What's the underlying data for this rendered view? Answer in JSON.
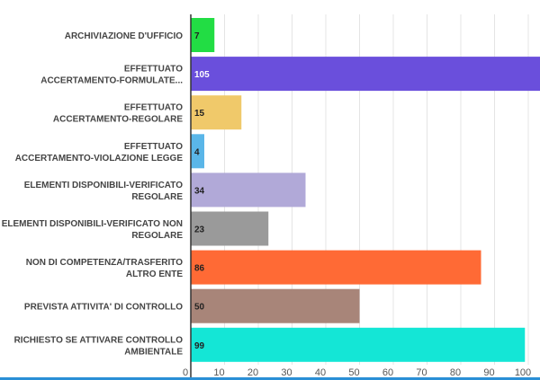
{
  "chart_data": {
    "type": "bar",
    "orientation": "horizontal",
    "categories": [
      [
        "ARCHIVIAZIONE D'UFFICIO"
      ],
      [
        "EFFETTUATO",
        "ACCERTAMENTO-FORMULATE..."
      ],
      [
        "EFFETTUATO",
        "ACCERTAMENTO-REGOLARE"
      ],
      [
        "EFFETTUATO",
        "ACCERTAMENTO-VIOLAZIONE LEGGE"
      ],
      [
        "ELEMENTI DISPONIBILI-VERIFICATO",
        "REGOLARE"
      ],
      [
        "ELEMENTI DISPONIBILI-VERIFICATO NON",
        "REGOLARE"
      ],
      [
        "NON DI COMPETENZA/TRASFERITO",
        "ALTRO ENTE"
      ],
      [
        "PREVISTA ATTIVITA' DI CONTROLLO"
      ],
      [
        "RICHIESTO SE ATTIVARE CONTROLLO",
        "AMBIENTALE"
      ]
    ],
    "values": [
      7,
      105,
      15,
      4,
      34,
      23,
      86,
      50,
      99
    ],
    "colors": [
      "#22dd44",
      "#6a4fdc",
      "#f0c96a",
      "#5ab6e8",
      "#b1a9d8",
      "#9a9a9a",
      "#ff6a35",
      "#a88579",
      "#14e6d6"
    ],
    "label_colors": [
      "#222",
      "#fff",
      "#222",
      "#222",
      "#222",
      "#222",
      "#222",
      "#222",
      "#222"
    ],
    "xticks": [
      0,
      10,
      20,
      30,
      40,
      50,
      60,
      70,
      80,
      90,
      100
    ],
    "xlim": [
      0,
      110
    ],
    "grid": true,
    "title": "",
    "xlabel": "",
    "ylabel": ""
  }
}
